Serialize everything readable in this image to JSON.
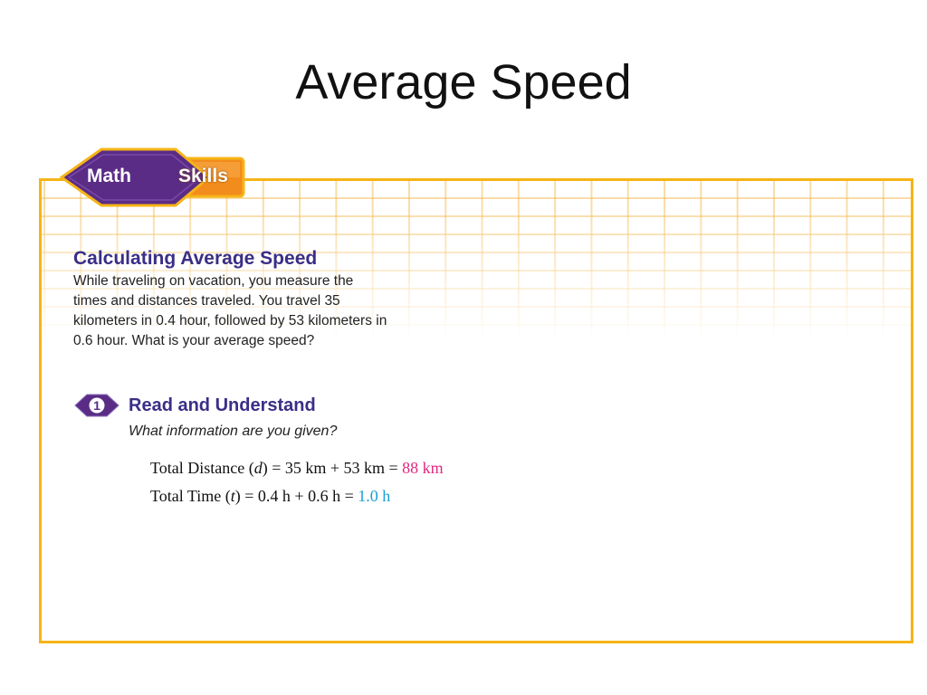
{
  "slide": {
    "title": "Average Speed"
  },
  "badge": {
    "left_label": "Math",
    "right_label": "Skills",
    "colors": {
      "left": "#5a2c86",
      "right": "#f28c1c",
      "outline": "#f5b417"
    }
  },
  "problem": {
    "heading": "Calculating Average Speed",
    "text": "While traveling on vacation, you measure the times and distances traveled. You travel 35 kilometers in 0.4 hour, followed by 53 kilometers in 0.6 hour. What is your average speed?"
  },
  "step1": {
    "number": "1",
    "heading": "Read and Understand",
    "question": "What information are you given?"
  },
  "equations": {
    "distance": {
      "label": "Total Distance (",
      "var": "d",
      "expr": ") = 35 km + 53 km = ",
      "result": "88 km",
      "result_color": "#e0287f"
    },
    "time": {
      "label": "Total Time (",
      "var": "t",
      "expr": ") = 0.4 h + 0.6 h = ",
      "result": "1.0 h",
      "result_color": "#1a9fd6"
    }
  },
  "colors": {
    "frame_border": "#f5b417",
    "heading_text": "#3a2e87"
  }
}
